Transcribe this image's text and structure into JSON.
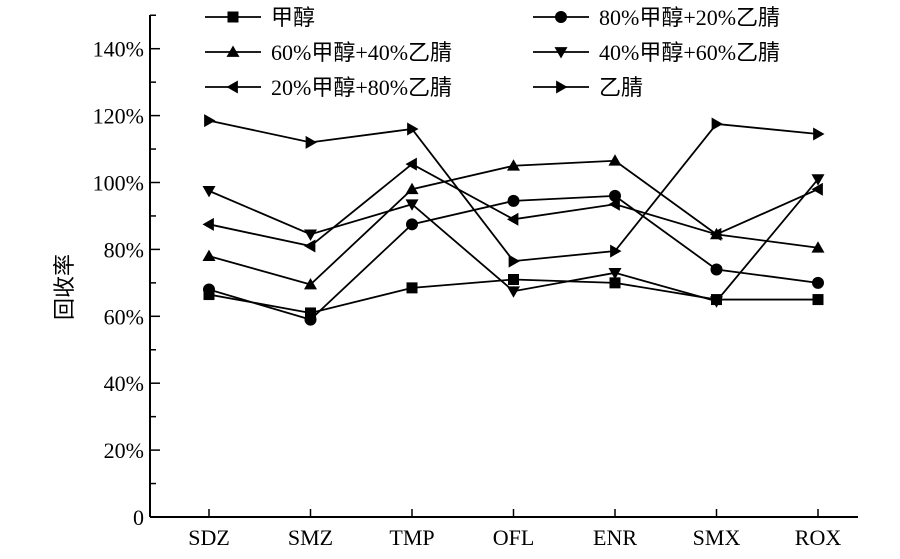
{
  "chart_data": {
    "type": "line",
    "title": "",
    "xlabel": "",
    "ylabel": "回收率",
    "ylim": [
      0,
      150
    ],
    "yticks": [
      0,
      20,
      40,
      60,
      80,
      100,
      120,
      140
    ],
    "ytick_labels": [
      "0",
      "20%",
      "40%",
      "60%",
      "80%",
      "100%",
      "120%",
      "140%"
    ],
    "categories": [
      "SDZ",
      "SMZ",
      "TMP",
      "OFL",
      "ENR",
      "SMX",
      "ROX"
    ],
    "grid": false,
    "legend_position": "top",
    "series": [
      {
        "name": "甲醇",
        "marker": "square",
        "values": [
          66.5,
          61,
          68.5,
          71,
          70,
          65,
          65
        ]
      },
      {
        "name": "80%甲醇+20%乙腈",
        "marker": "circle",
        "values": [
          68,
          59,
          87.5,
          94.5,
          96,
          74,
          70
        ]
      },
      {
        "name": "60%甲醇+40%乙腈",
        "marker": "triangle-up",
        "values": [
          78,
          69.5,
          98,
          105,
          106.5,
          84.5,
          80.5
        ]
      },
      {
        "name": "40%甲醇+60%乙腈",
        "marker": "triangle-down",
        "values": [
          97.5,
          84.5,
          93.5,
          67.5,
          73,
          64.5,
          101
        ]
      },
      {
        "name": "20%甲醇+80%乙腈",
        "marker": "triangle-left",
        "values": [
          87.5,
          81,
          105.5,
          89,
          93.5,
          84.5,
          98
        ]
      },
      {
        "name": "乙腈",
        "marker": "triangle-right",
        "values": [
          118.5,
          112,
          116,
          76.5,
          79.5,
          117.5,
          114.5
        ]
      }
    ]
  }
}
